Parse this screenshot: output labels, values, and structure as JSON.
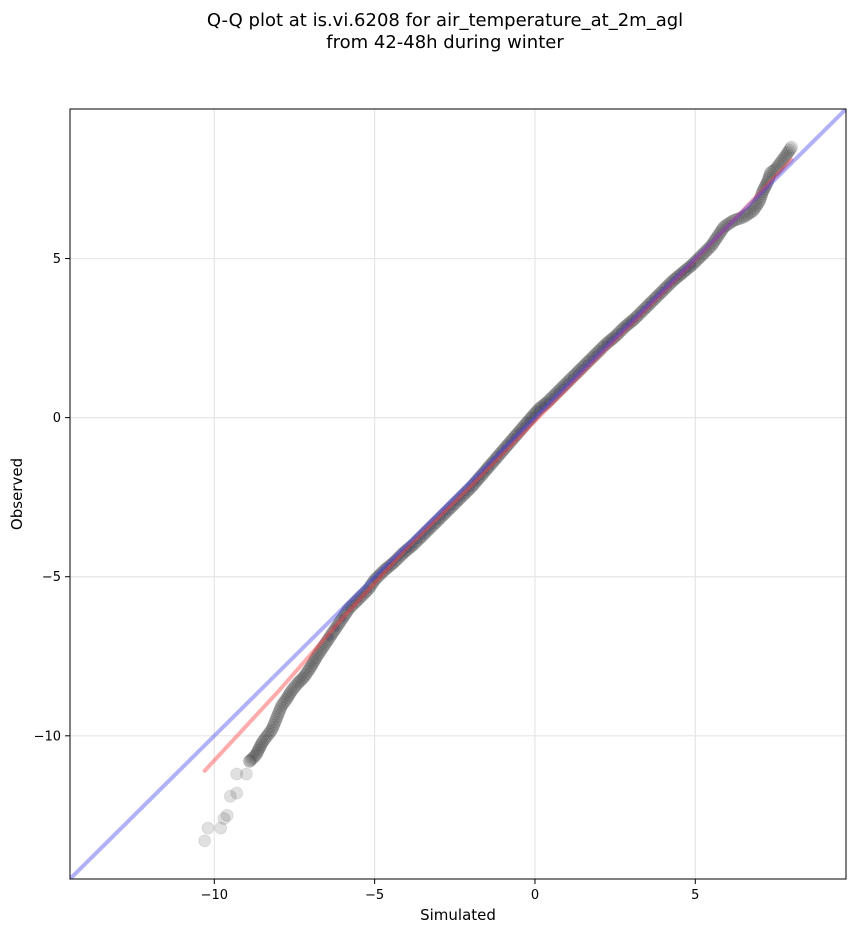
{
  "chart_data": {
    "type": "scatter",
    "title": "Q-Q plot at is.vi.6208 for air_temperature_at_2m_agl",
    "subtitle": "from 42-48h during winter",
    "xlabel": "Simulated",
    "ylabel": "Observed",
    "xlim": [
      -14.5,
      9.7
    ],
    "ylim": [
      -14.5,
      9.7
    ],
    "x_ticks": [
      -10,
      -5,
      0,
      5
    ],
    "y_ticks": [
      -10,
      -5,
      0,
      5
    ],
    "x_tick_labels": [
      "−10",
      "−5",
      "0",
      "5"
    ],
    "y_tick_labels": [
      "−10",
      "−5",
      "0",
      "5"
    ],
    "grid": true,
    "series": [
      {
        "kind": "quantile-points",
        "color": "#000000",
        "points": [
          [
            -10.3,
            -13.3
          ],
          [
            -10.2,
            -12.9
          ],
          [
            -9.8,
            -12.9
          ],
          [
            -9.7,
            -12.6
          ],
          [
            -9.6,
            -12.5
          ],
          [
            -9.5,
            -11.9
          ],
          [
            -9.3,
            -11.8
          ],
          [
            -9.3,
            -11.2
          ],
          [
            -9.0,
            -11.2
          ],
          [
            -8.9,
            -10.8
          ],
          [
            -8.7,
            -10.6
          ],
          [
            -8.6,
            -10.4
          ],
          [
            -8.5,
            -10.2
          ],
          [
            -8.35,
            -10.0
          ],
          [
            -8.2,
            -9.8
          ],
          [
            -8.1,
            -9.55
          ],
          [
            -8.0,
            -9.3
          ],
          [
            -7.9,
            -9.05
          ],
          [
            -7.75,
            -8.85
          ],
          [
            -7.6,
            -8.6
          ],
          [
            -7.4,
            -8.35
          ],
          [
            -7.2,
            -8.15
          ],
          [
            -7.0,
            -7.85
          ],
          [
            -6.8,
            -7.5
          ],
          [
            -6.6,
            -7.2
          ],
          [
            -6.4,
            -6.9
          ],
          [
            -6.2,
            -6.6
          ],
          [
            -6.0,
            -6.3
          ],
          [
            -5.8,
            -6.0
          ],
          [
            -5.5,
            -5.7
          ],
          [
            -5.2,
            -5.4
          ],
          [
            -5.0,
            -5.1
          ],
          [
            -4.7,
            -4.8
          ],
          [
            -4.4,
            -4.55
          ],
          [
            -4.1,
            -4.25
          ],
          [
            -3.8,
            -4.0
          ],
          [
            -3.5,
            -3.7
          ],
          [
            -3.2,
            -3.4
          ],
          [
            -2.9,
            -3.1
          ],
          [
            -2.6,
            -2.8
          ],
          [
            -2.3,
            -2.5
          ],
          [
            -2.0,
            -2.2
          ],
          [
            -1.7,
            -1.85
          ],
          [
            -1.4,
            -1.5
          ],
          [
            -1.1,
            -1.15
          ],
          [
            -0.8,
            -0.8
          ],
          [
            -0.5,
            -0.45
          ],
          [
            -0.2,
            -0.1
          ],
          [
            0.1,
            0.25
          ],
          [
            0.4,
            0.5
          ],
          [
            0.7,
            0.8
          ],
          [
            1.0,
            1.1
          ],
          [
            1.3,
            1.4
          ],
          [
            1.6,
            1.7
          ],
          [
            1.9,
            2.0
          ],
          [
            2.2,
            2.3
          ],
          [
            2.5,
            2.55
          ],
          [
            2.8,
            2.85
          ],
          [
            3.1,
            3.1
          ],
          [
            3.4,
            3.4
          ],
          [
            3.7,
            3.7
          ],
          [
            4.0,
            4.0
          ],
          [
            4.3,
            4.3
          ],
          [
            4.6,
            4.55
          ],
          [
            4.9,
            4.8
          ],
          [
            5.2,
            5.1
          ],
          [
            5.5,
            5.4
          ],
          [
            5.7,
            5.7
          ],
          [
            5.9,
            6.0
          ],
          [
            6.2,
            6.2
          ],
          [
            6.5,
            6.3
          ],
          [
            6.8,
            6.5
          ],
          [
            7.0,
            6.8
          ],
          [
            7.1,
            7.1
          ],
          [
            7.25,
            7.4
          ],
          [
            7.35,
            7.7
          ],
          [
            7.5,
            7.8
          ],
          [
            7.8,
            8.2
          ],
          [
            8.0,
            8.5
          ]
        ]
      },
      {
        "kind": "red-fit-line",
        "color": "#ff4444",
        "points": [
          [
            -10.3,
            -11.1
          ],
          [
            -8.0,
            -8.6
          ],
          [
            -6.0,
            -6.3
          ],
          [
            -4.0,
            -4.1
          ],
          [
            -2.0,
            -2.15
          ],
          [
            0.0,
            -0.1
          ],
          [
            2.0,
            1.95
          ],
          [
            4.0,
            3.95
          ],
          [
            6.0,
            6.0
          ],
          [
            8.0,
            8.1
          ]
        ]
      },
      {
        "kind": "blue-identity-line",
        "color": "#4444ee",
        "points": [
          [
            -14.5,
            -14.5
          ],
          [
            9.7,
            9.7
          ]
        ]
      }
    ]
  }
}
